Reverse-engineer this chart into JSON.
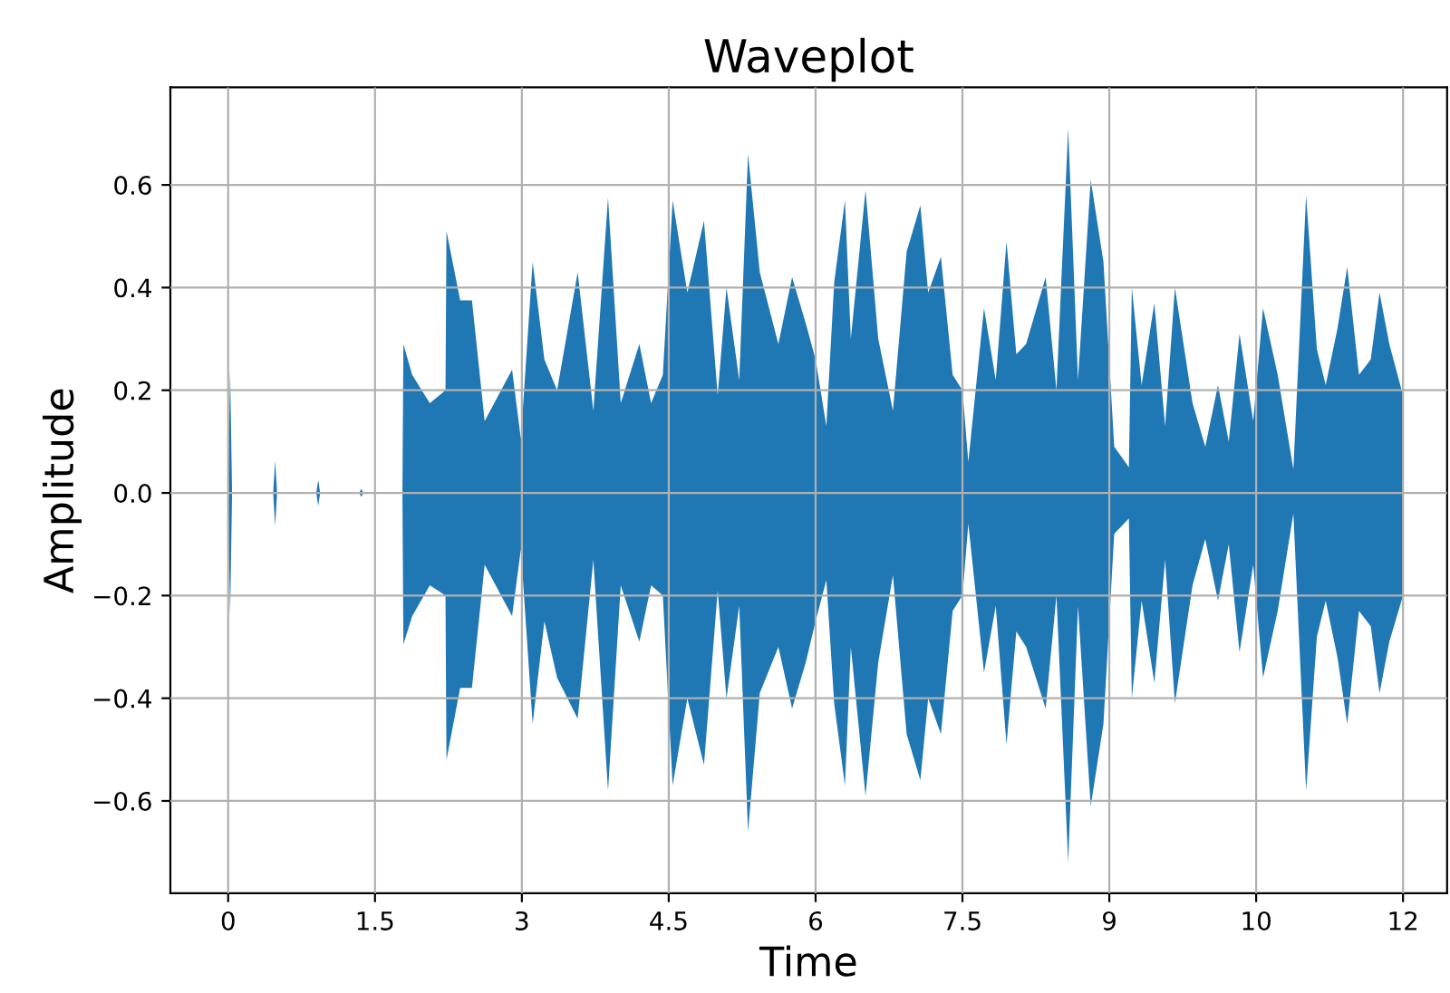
{
  "chart_data": {
    "type": "area",
    "title": "Waveplot",
    "xlabel": "Time",
    "ylabel": "Amplitude",
    "x": [
      0,
      0.02,
      0.04,
      0.46,
      0.48,
      0.5,
      0.9,
      0.92,
      0.94,
      1.34,
      1.36,
      1.38,
      1.78,
      1.79,
      1.88,
      2.06,
      2.22,
      2.23,
      2.37,
      2.49,
      2.62,
      2.9,
      2.99,
      3.11,
      3.23,
      3.36,
      3.57,
      3.73,
      3.88,
      4.01,
      4.2,
      4.32,
      4.44,
      4.54,
      4.69,
      4.86,
      5.0,
      5.09,
      5.22,
      5.31,
      5.43,
      5.62,
      5.76,
      5.9,
      6.0,
      6.11,
      6.19,
      6.3,
      6.36,
      6.51,
      6.64,
      6.79,
      6.93,
      7.07,
      7.15,
      7.28,
      7.4,
      7.5,
      7.56,
      7.72,
      7.84,
      7.95,
      8.05,
      8.15,
      8.35,
      8.46,
      8.58,
      8.68,
      8.81,
      8.94,
      9.05,
      9.2,
      9.23,
      9.33,
      9.46,
      9.57,
      9.67,
      9.85,
      9.98,
      10.11,
      10.22,
      10.33,
      10.47,
      10.57,
      10.72,
      10.88,
      11.01,
      11.12,
      11.21,
      11.33,
      11.43,
      11.55,
      11.67,
      11.76,
      11.86,
      12.0
    ],
    "series": [
      {
        "color": "#1f77b4",
        "values": [
          0,
          0.24,
          0,
          0,
          0.063,
          0,
          0,
          0.025,
          0,
          0,
          0.008,
          0,
          0,
          0.29,
          0.23,
          0.175,
          0.2,
          0.51,
          0.375,
          0.375,
          0.14,
          0.24,
          0.105,
          0.45,
          0.26,
          0.2,
          0.43,
          0.16,
          0.575,
          0.175,
          0.29,
          0.175,
          0.23,
          0.57,
          0.39,
          0.53,
          0.19,
          0.4,
          0.22,
          0.66,
          0.43,
          0.29,
          0.42,
          0.33,
          0.26,
          0.13,
          0.41,
          0.57,
          0.3,
          0.59,
          0.3,
          0.16,
          0.47,
          0.56,
          0.39,
          0.46,
          0.23,
          0.2,
          0.06,
          0.36,
          0.22,
          0.49,
          0.27,
          0.29,
          0.42,
          0.2,
          0.71,
          0.22,
          0.61,
          0.45,
          0.09,
          0.05,
          0.4,
          0.21,
          0.37,
          0.13,
          0.4,
          0.175,
          0.09,
          0.21,
          0.1,
          0.31,
          0.14,
          0.36,
          0.23,
          0.046,
          0.58,
          0.28,
          0.21,
          0.32,
          0.44,
          0.23,
          0.26,
          0.39,
          0.29,
          0.19
        ]
      },
      {
        "color": "#1f77b4",
        "values": [
          0,
          -0.24,
          0,
          0,
          -0.065,
          0,
          0,
          -0.025,
          0,
          0,
          -0.008,
          0,
          0,
          -0.295,
          -0.24,
          -0.18,
          -0.2,
          -0.52,
          -0.38,
          -0.38,
          -0.14,
          -0.24,
          -0.11,
          -0.45,
          -0.25,
          -0.36,
          -0.44,
          -0.13,
          -0.58,
          -0.18,
          -0.29,
          -0.18,
          -0.2,
          -0.57,
          -0.4,
          -0.53,
          -0.19,
          -0.4,
          -0.22,
          -0.66,
          -0.39,
          -0.3,
          -0.42,
          -0.33,
          -0.25,
          -0.17,
          -0.41,
          -0.57,
          -0.3,
          -0.59,
          -0.33,
          -0.16,
          -0.47,
          -0.56,
          -0.4,
          -0.47,
          -0.23,
          -0.2,
          -0.06,
          -0.35,
          -0.22,
          -0.49,
          -0.27,
          -0.3,
          -0.42,
          -0.2,
          -0.72,
          -0.22,
          -0.61,
          -0.45,
          -0.08,
          -0.05,
          -0.4,
          -0.21,
          -0.37,
          -0.13,
          -0.41,
          -0.18,
          -0.09,
          -0.21,
          -0.1,
          -0.31,
          -0.14,
          -0.36,
          -0.23,
          -0.04,
          -0.58,
          -0.28,
          -0.21,
          -0.32,
          -0.45,
          -0.23,
          -0.26,
          -0.39,
          -0.29,
          -0.2
        ]
      }
    ],
    "xlim": [
      -0.59,
      12.45
    ],
    "ylim": [
      -0.78,
      0.79
    ],
    "xticks": [
      0,
      1.5,
      3,
      4.5,
      6,
      7.5,
      9,
      {
        "value": 10.5,
        "label": "10"
      },
      12
    ],
    "yticks": [
      {
        "value": -0.6,
        "label": "−0.6"
      },
      {
        "value": -0.4,
        "label": "−0.4"
      },
      {
        "value": -0.2,
        "label": "−0.2"
      },
      {
        "value": 0,
        "label": "0.0"
      },
      0.2,
      0.4,
      0.6
    ],
    "grid": true
  }
}
